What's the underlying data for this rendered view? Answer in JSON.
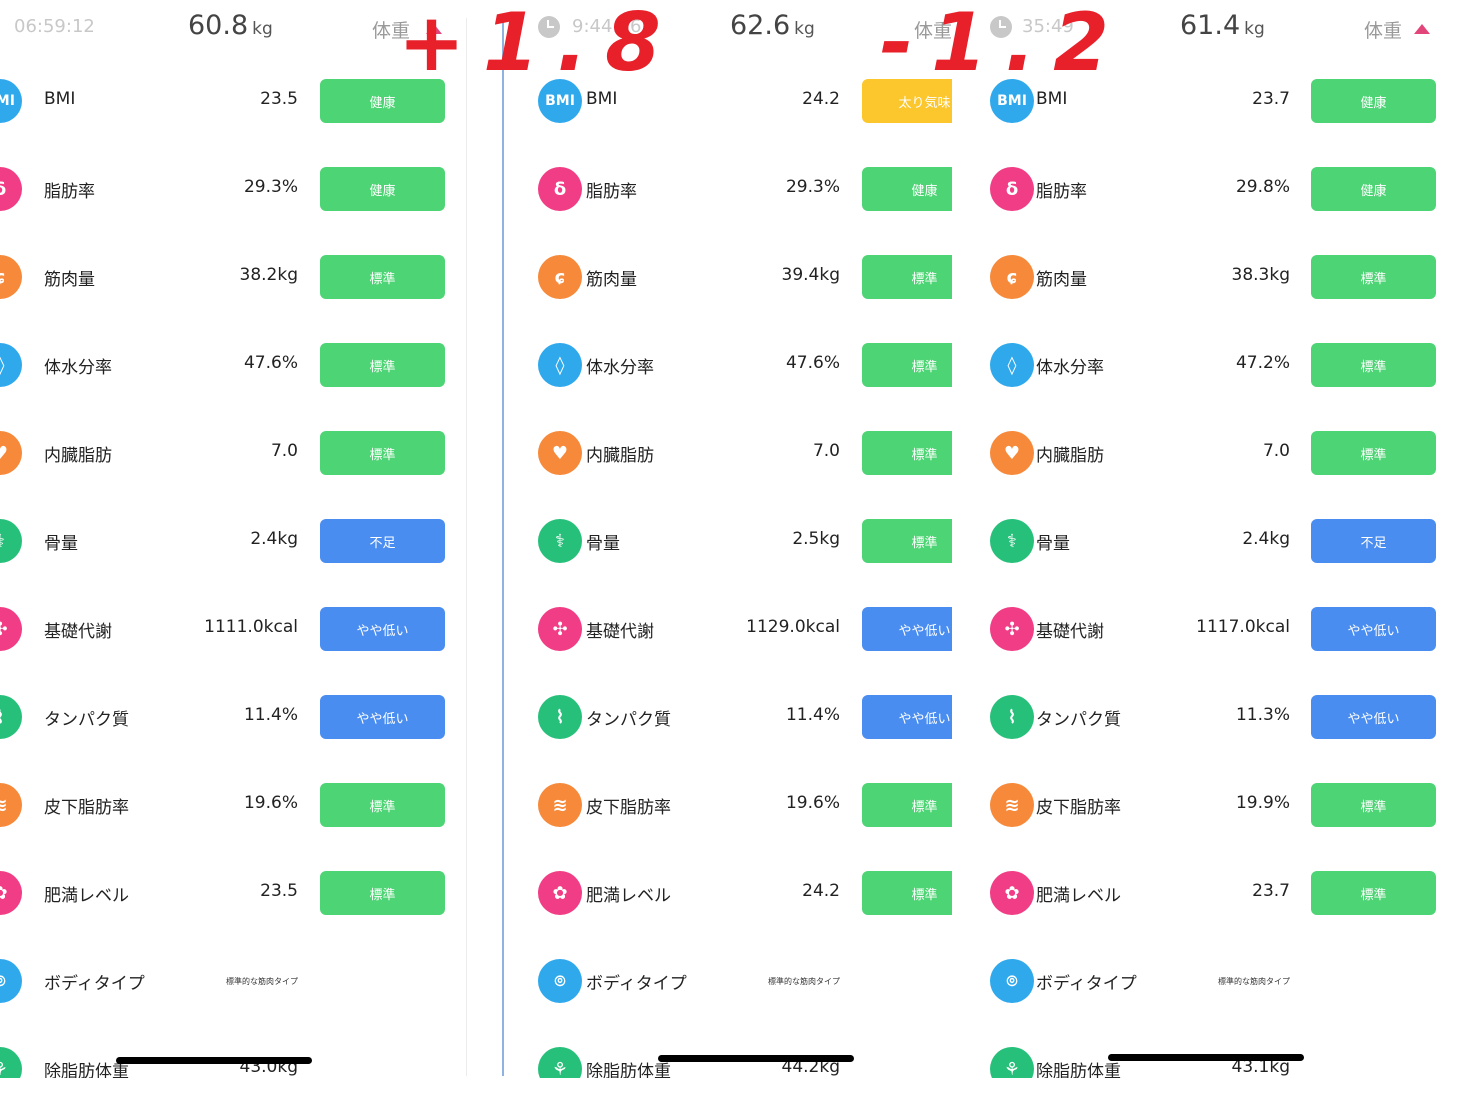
{
  "headers": [
    {
      "time": "06:59:12",
      "weight": "60.8",
      "unit": "kg",
      "label": "体重"
    },
    {
      "time": "9:44:36",
      "weight": "62.6",
      "unit": "kg",
      "label": "体重"
    },
    {
      "time": "35:49",
      "weight": "61.4",
      "unit": "kg",
      "label": "体重"
    }
  ],
  "annotations": {
    "plus": "+1.8",
    "minus": "-1.2"
  },
  "colors": {
    "green": "#4dd474",
    "blue": "#4a8df0",
    "yellow": "#fcc72c",
    "icon_bmi": "#2fa9ec",
    "icon_fat": "#f03d86",
    "icon_muscle": "#f6893a",
    "icon_water": "#2fa9ec",
    "icon_visceral": "#f6893a",
    "icon_bone": "#27c07a",
    "icon_bmr": "#f03d86",
    "icon_protein": "#27c07a",
    "icon_subcut": "#f6893a",
    "icon_obesity": "#f03d86",
    "icon_bodytype": "#2fa9ec",
    "icon_lean": "#27c07a",
    "annotation": "#e8202a"
  },
  "panels": [
    {
      "rows": [
        {
          "icon": "bmi-icon",
          "label": "BMI",
          "value": "23.5",
          "badge": "健康",
          "badge_color": "green"
        },
        {
          "icon": "body-fat-icon",
          "label": "脂肪率",
          "value": "29.3%",
          "badge": "健康",
          "badge_color": "green"
        },
        {
          "icon": "muscle-icon",
          "label": "筋肉量",
          "value": "38.2kg",
          "badge": "標準",
          "badge_color": "green"
        },
        {
          "icon": "water-icon",
          "label": "体水分率",
          "value": "47.6%",
          "badge": "標準",
          "badge_color": "green"
        },
        {
          "icon": "visceral-fat-icon",
          "label": "内臓脂肪",
          "value": "7.0",
          "badge": "標準",
          "badge_color": "green"
        },
        {
          "icon": "bone-icon",
          "label": "骨量",
          "value": "2.4kg",
          "badge": "不足",
          "badge_color": "blue"
        },
        {
          "icon": "metabolism-icon",
          "label": "基礎代謝",
          "value": "1111.0kcal",
          "badge": "やや低い",
          "badge_color": "blue"
        },
        {
          "icon": "protein-icon",
          "label": "タンパク質",
          "value": "11.4%",
          "badge": "やや低い",
          "badge_color": "blue"
        },
        {
          "icon": "subcutaneous-fat-icon",
          "label": "皮下脂肪率",
          "value": "19.6%",
          "badge": "標準",
          "badge_color": "green"
        },
        {
          "icon": "obesity-level-icon",
          "label": "肥満レベル",
          "value": "23.5",
          "badge": "標準",
          "badge_color": "green"
        },
        {
          "icon": "body-type-icon",
          "label": "ボディタイプ",
          "value": "標準的な筋肉タイプ",
          "badge": "",
          "badge_color": ""
        },
        {
          "icon": "lean-mass-icon",
          "label": "除脂肪体重",
          "value": "43.0kg",
          "badge": "",
          "badge_color": ""
        }
      ]
    },
    {
      "rows": [
        {
          "icon": "bmi-icon",
          "label": "BMI",
          "value": "24.2",
          "badge": "太り気味",
          "badge_color": "yellow"
        },
        {
          "icon": "body-fat-icon",
          "label": "脂肪率",
          "value": "29.3%",
          "badge": "健康",
          "badge_color": "green"
        },
        {
          "icon": "muscle-icon",
          "label": "筋肉量",
          "value": "39.4kg",
          "badge": "標準",
          "badge_color": "green"
        },
        {
          "icon": "water-icon",
          "label": "体水分率",
          "value": "47.6%",
          "badge": "標準",
          "badge_color": "green"
        },
        {
          "icon": "visceral-fat-icon",
          "label": "内臓脂肪",
          "value": "7.0",
          "badge": "標準",
          "badge_color": "green"
        },
        {
          "icon": "bone-icon",
          "label": "骨量",
          "value": "2.5kg",
          "badge": "標準",
          "badge_color": "green"
        },
        {
          "icon": "metabolism-icon",
          "label": "基礎代謝",
          "value": "1129.0kcal",
          "badge": "やや低い",
          "badge_color": "blue"
        },
        {
          "icon": "protein-icon",
          "label": "タンパク質",
          "value": "11.4%",
          "badge": "やや低い",
          "badge_color": "blue"
        },
        {
          "icon": "subcutaneous-fat-icon",
          "label": "皮下脂肪率",
          "value": "19.6%",
          "badge": "標準",
          "badge_color": "green"
        },
        {
          "icon": "obesity-level-icon",
          "label": "肥満レベル",
          "value": "24.2",
          "badge": "標準",
          "badge_color": "green"
        },
        {
          "icon": "body-type-icon",
          "label": "ボディタイプ",
          "value": "標準的な筋肉タイプ",
          "badge": "",
          "badge_color": ""
        },
        {
          "icon": "lean-mass-icon",
          "label": "除脂肪体重",
          "value": "44.2kg",
          "badge": "",
          "badge_color": ""
        }
      ]
    },
    {
      "rows": [
        {
          "icon": "bmi-icon",
          "label": "BMI",
          "value": "23.7",
          "badge": "健康",
          "badge_color": "green"
        },
        {
          "icon": "body-fat-icon",
          "label": "脂肪率",
          "value": "29.8%",
          "badge": "健康",
          "badge_color": "green"
        },
        {
          "icon": "muscle-icon",
          "label": "筋肉量",
          "value": "38.3kg",
          "badge": "標準",
          "badge_color": "green"
        },
        {
          "icon": "water-icon",
          "label": "体水分率",
          "value": "47.2%",
          "badge": "標準",
          "badge_color": "green"
        },
        {
          "icon": "visceral-fat-icon",
          "label": "内臓脂肪",
          "value": "7.0",
          "badge": "標準",
          "badge_color": "green"
        },
        {
          "icon": "bone-icon",
          "label": "骨量",
          "value": "2.4kg",
          "badge": "不足",
          "badge_color": "blue"
        },
        {
          "icon": "metabolism-icon",
          "label": "基礎代謝",
          "value": "1117.0kcal",
          "badge": "やや低い",
          "badge_color": "blue"
        },
        {
          "icon": "protein-icon",
          "label": "タンパク質",
          "value": "11.3%",
          "badge": "やや低い",
          "badge_color": "blue"
        },
        {
          "icon": "subcutaneous-fat-icon",
          "label": "皮下脂肪率",
          "value": "19.9%",
          "badge": "標準",
          "badge_color": "green"
        },
        {
          "icon": "obesity-level-icon",
          "label": "肥満レベル",
          "value": "23.7",
          "badge": "標準",
          "badge_color": "green"
        },
        {
          "icon": "body-type-icon",
          "label": "ボディタイプ",
          "value": "標準的な筋肉タイプ",
          "badge": "",
          "badge_color": ""
        },
        {
          "icon": "lean-mass-icon",
          "label": "除脂肪体重",
          "value": "43.1kg",
          "badge": "",
          "badge_color": ""
        }
      ]
    }
  ],
  "icon_glyphs": {
    "bmi-icon": "BMI",
    "body-fat-icon": "δ",
    "muscle-icon": "ɕ",
    "water-icon": "◊",
    "visceral-fat-icon": "♥",
    "bone-icon": "⚕",
    "metabolism-icon": "✣",
    "protein-icon": "⌇",
    "subcutaneous-fat-icon": "≋",
    "obesity-level-icon": "✿",
    "body-type-icon": "⌾",
    "lean-mass-icon": "⚘"
  }
}
